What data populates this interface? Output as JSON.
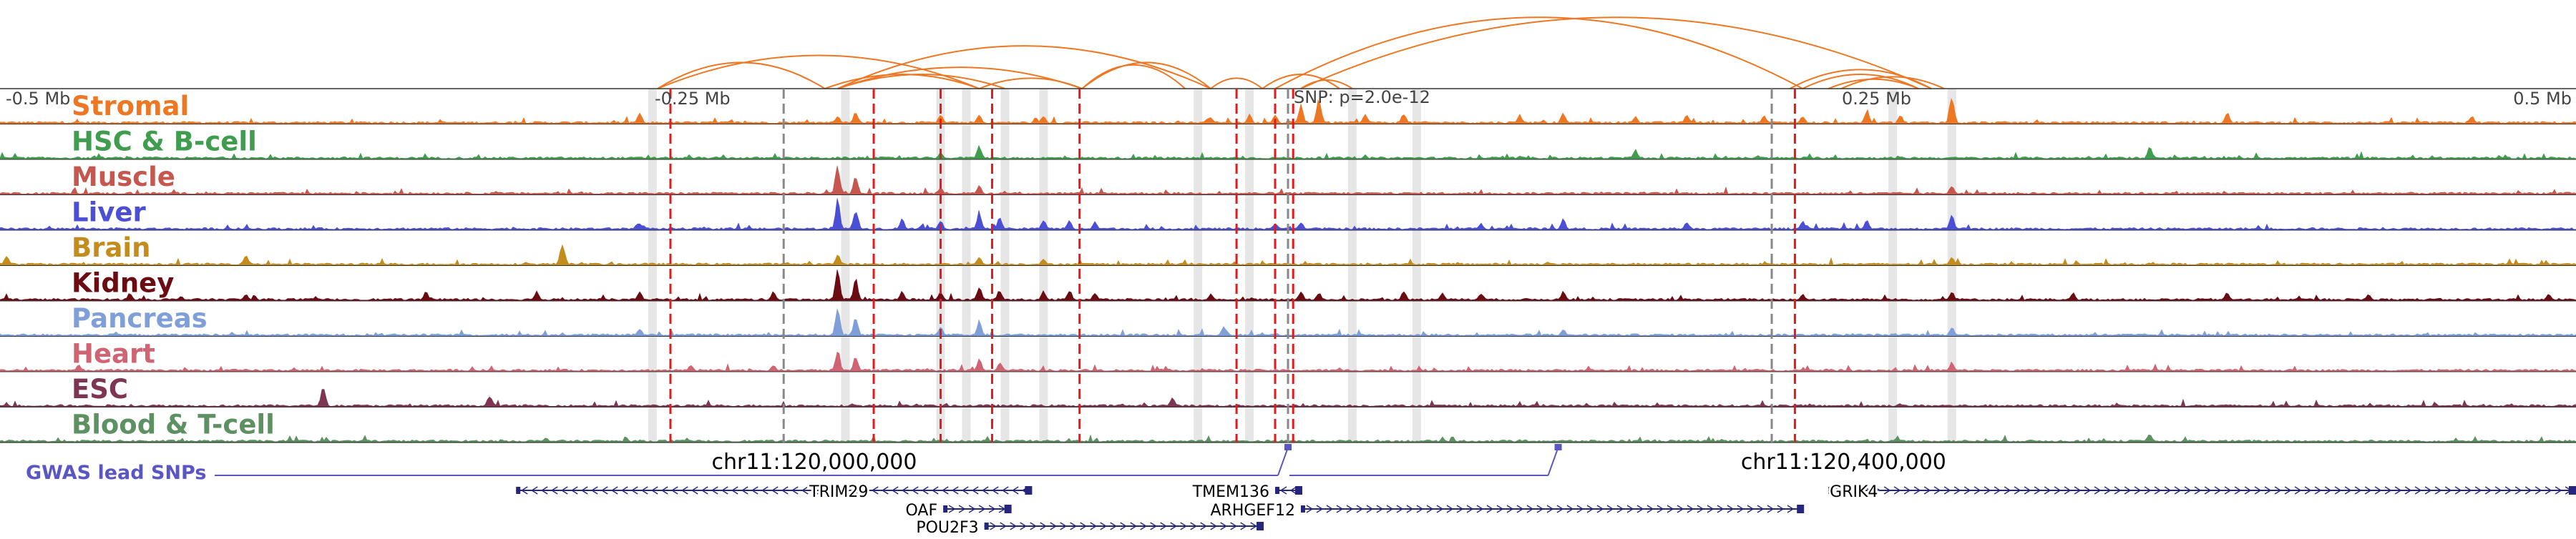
{
  "axis": {
    "labels": [
      {
        "text": "-0.5 Mb",
        "pos": -0.5
      },
      {
        "text": "-0.25 Mb",
        "pos": -0.25
      },
      {
        "text": "0.25 Mb",
        "pos": 0.25
      },
      {
        "text": "0.5 Mb",
        "pos": 0.5
      }
    ],
    "snp_label": "SNP: p=2.0e-12",
    "snp_pos": 0.0,
    "coordinate_labels": [
      {
        "text": "chr11:120,000,000",
        "mb": -0.224
      },
      {
        "text": "chr11:120,400,000",
        "mb": 0.176
      }
    ]
  },
  "tracks": [
    {
      "name": "Stromal",
      "color": "#ee7723"
    },
    {
      "name": "HSC & B-cell",
      "color": "#3f9d4d"
    },
    {
      "name": "Muscle",
      "color": "#c6574e"
    },
    {
      "name": "Liver",
      "color": "#4a4fd6"
    },
    {
      "name": "Brain",
      "color": "#c48c1c"
    },
    {
      "name": "Kidney",
      "color": "#6b0b12"
    },
    {
      "name": "Pancreas",
      "color": "#7f9fd8"
    },
    {
      "name": "Heart",
      "color": "#cf6473"
    },
    {
      "name": "ESC",
      "color": "#7d3553"
    },
    {
      "name": "Blood & T-cell",
      "color": "#5e9161"
    }
  ],
  "peaks": [
    {
      "mb": -0.498,
      "tracks": {
        "Brain": 0.35
      }
    },
    {
      "mb": -0.47,
      "tracks": {
        "Heart": 0.2
      }
    },
    {
      "mb": -0.45,
      "tracks": {
        "Kidney": 0.25
      }
    },
    {
      "mb": -0.405,
      "tracks": {
        "Brain": 0.35,
        "Kidney": 0.2
      }
    },
    {
      "mb": -0.375,
      "tracks": {
        "ESC": 0.7
      }
    },
    {
      "mb": -0.335,
      "tracks": {
        "Kidney": 0.3
      }
    },
    {
      "mb": -0.31,
      "tracks": {
        "ESC": 0.35
      }
    },
    {
      "mb": -0.292,
      "tracks": {
        "Kidney": 0.3
      }
    },
    {
      "mb": -0.282,
      "tracks": {
        "Brain": 0.75
      }
    },
    {
      "mb": -0.252,
      "tracks": {
        "Stromal": 0.35,
        "Kidney": 0.3,
        "Pancreas": 0.25,
        "Liver": 0.2
      }
    },
    {
      "mb": -0.232,
      "tracks": {
        "Heart": 0.2
      }
    },
    {
      "mb": -0.2,
      "tracks": {
        "Kidney": 0.3,
        "Heart": 0.2
      }
    },
    {
      "mb": -0.175,
      "tracks": {
        "Stromal": 0.25,
        "Muscle": 1.0,
        "Liver": 1.0,
        "Brain": 0.35,
        "Kidney": 1.0,
        "Pancreas": 1.0,
        "Heart": 0.7
      }
    },
    {
      "mb": -0.168,
      "tracks": {
        "Stromal": 0.4,
        "Muscle": 0.6,
        "Liver": 0.7,
        "Kidney": 0.7,
        "Pancreas": 0.6,
        "Heart": 0.5
      }
    },
    {
      "mb": -0.15,
      "tracks": {
        "Liver": 0.35,
        "Kidney": 0.3
      }
    },
    {
      "mb": -0.135,
      "tracks": {
        "Stromal": 0.3,
        "HSC & B-cell": 0.2,
        "Muscle": 0.2,
        "Liver": 0.3,
        "Kidney": 0.3,
        "Pancreas": 0.3
      }
    },
    {
      "mb": -0.12,
      "tracks": {
        "Stromal": 0.3,
        "HSC & B-cell": 0.45,
        "Muscle": 0.3,
        "Liver": 0.6,
        "Brain": 0.25,
        "Kidney": 0.5,
        "Pancreas": 0.5,
        "Heart": 0.4
      }
    },
    {
      "mb": -0.112,
      "tracks": {
        "Liver": 0.4,
        "Kidney": 0.35,
        "Heart": 0.3
      }
    },
    {
      "mb": -0.095,
      "tracks": {
        "Stromal": 0.25,
        "Liver": 0.35,
        "Kidney": 0.3,
        "Brain": 0.2
      }
    },
    {
      "mb": -0.085,
      "tracks": {
        "Liver": 0.3,
        "Kidney": 0.35
      }
    },
    {
      "mb": -0.075,
      "tracks": {
        "Liver": 0.25,
        "Kidney": 0.25
      }
    },
    {
      "mb": -0.045,
      "tracks": {
        "ESC": 0.3
      }
    },
    {
      "mb": -0.03,
      "tracks": {
        "Stromal": 0.2,
        "Kidney": 0.2
      }
    },
    {
      "mb": -0.025,
      "tracks": {
        "Pancreas": 0.3
      }
    },
    {
      "mb": -0.015,
      "tracks": {
        "Stromal": 0.3
      }
    },
    {
      "mb": -0.005,
      "tracks": {
        "Stromal": 0.3,
        "Liver": 0.2
      }
    },
    {
      "mb": 0.005,
      "tracks": {
        "Stromal": 0.6,
        "Liver": 0.25,
        "Kidney": 0.3
      }
    },
    {
      "mb": 0.012,
      "tracks": {
        "Stromal": 0.9,
        "Kidney": 0.25
      }
    },
    {
      "mb": 0.03,
      "tracks": {
        "Stromal": 0.3
      }
    },
    {
      "mb": 0.045,
      "tracks": {
        "Stromal": 0.35,
        "Kidney": 0.3
      }
    },
    {
      "mb": 0.06,
      "tracks": {
        "Kidney": 0.25
      }
    },
    {
      "mb": 0.075,
      "tracks": {
        "Kidney": 0.25,
        "Liver": 0.2
      }
    },
    {
      "mb": 0.09,
      "tracks": {
        "Stromal": 0.3
      }
    },
    {
      "mb": 0.107,
      "tracks": {
        "Stromal": 0.35,
        "Liver": 0.35,
        "Kidney": 0.3,
        "Pancreas": 0.2
      }
    },
    {
      "mb": 0.135,
      "tracks": {
        "Stromal": 0.25,
        "HSC & B-cell": 0.3
      }
    },
    {
      "mb": 0.155,
      "tracks": {
        "Stromal": 0.3,
        "Liver": 0.25
      }
    },
    {
      "mb": 0.185,
      "tracks": {
        "Stromal": 0.25
      }
    },
    {
      "mb": 0.2,
      "tracks": {
        "Stromal": 0.25,
        "Liver": 0.3,
        "Kidney": 0.2
      }
    },
    {
      "mb": 0.225,
      "tracks": {
        "Stromal": 0.45,
        "Liver": 0.3
      }
    },
    {
      "mb": 0.238,
      "tracks": {
        "Stromal": 0.3
      }
    },
    {
      "mb": 0.258,
      "tracks": {
        "Stromal": 1.0,
        "Liver": 0.5,
        "Muscle": 0.3,
        "Brain": 0.3,
        "Kidney": 0.3,
        "Pancreas": 0.3,
        "Heart": 0.3
      }
    },
    {
      "mb": 0.305,
      "tracks": {
        "Kidney": 0.25
      }
    },
    {
      "mb": 0.335,
      "tracks": {
        "HSC & B-cell": 0.4,
        "Blood & T-cell": 0.25
      }
    },
    {
      "mb": 0.365,
      "tracks": {
        "Stromal": 0.35,
        "Kidney": 0.25
      }
    },
    {
      "mb": 0.42,
      "tracks": {
        "Kidney": 0.2
      }
    },
    {
      "mb": 0.46,
      "tracks": {
        "Stromal": 0.25
      }
    },
    {
      "mb": 0.49,
      "tracks": {
        "Kidney": 0.2
      }
    }
  ],
  "markers": {
    "highlight_bands": [
      -0.247,
      -0.172,
      -0.135,
      -0.125,
      -0.11,
      -0.095,
      -0.035,
      -0.015,
      0.025,
      0.05,
      0.235,
      0.258
    ],
    "red_dashed": [
      -0.24,
      -0.161,
      -0.135,
      -0.115,
      -0.081,
      -0.02,
      -0.005,
      0.002,
      0.197
    ],
    "gray_dashed": [
      -0.196,
      0.0,
      0.188
    ]
  },
  "loops": [
    {
      "a": -0.245,
      "b": -0.18,
      "h": 55
    },
    {
      "a": -0.245,
      "b": -0.12,
      "h": 70
    },
    {
      "a": -0.18,
      "b": -0.12,
      "h": 30
    },
    {
      "a": -0.175,
      "b": -0.11,
      "h": 30
    },
    {
      "a": -0.175,
      "b": -0.08,
      "h": 45
    },
    {
      "a": -0.12,
      "b": -0.08,
      "h": 22
    },
    {
      "a": -0.175,
      "b": -0.03,
      "h": 90
    },
    {
      "a": -0.08,
      "b": -0.03,
      "h": 55
    },
    {
      "a": -0.08,
      "b": -0.04,
      "h": 50
    },
    {
      "a": -0.03,
      "b": -0.01,
      "h": 22
    },
    {
      "a": -0.01,
      "b": 0.02,
      "h": 30
    },
    {
      "a": 0.005,
      "b": 0.025,
      "h": 18
    },
    {
      "a": -0.005,
      "b": 0.2,
      "h": 150
    },
    {
      "a": 0.005,
      "b": 0.25,
      "h": 150
    },
    {
      "a": 0.195,
      "b": 0.25,
      "h": 40
    },
    {
      "a": 0.2,
      "b": 0.245,
      "h": 30
    },
    {
      "a": 0.21,
      "b": 0.245,
      "h": 20
    },
    {
      "a": 0.215,
      "b": 0.255,
      "h": 25
    }
  ],
  "gwas": {
    "label": "GWAS lead SNPs",
    "snps": [
      {
        "mb": 0.0,
        "level": 0.9
      },
      {
        "mb": 0.105,
        "level": 0.9
      }
    ]
  },
  "genes": [
    {
      "name": "TRIM29",
      "start": -0.3,
      "end": -0.1,
      "strand": "-",
      "row": 0
    },
    {
      "name": "OAF",
      "start": -0.134,
      "end": -0.108,
      "strand": "+",
      "row": 1
    },
    {
      "name": "POU2F3",
      "start": -0.118,
      "end": -0.01,
      "strand": "+",
      "row": 2
    },
    {
      "name": "TMEM136",
      "start": -0.005,
      "end": 0.005,
      "strand": "-",
      "row": 0
    },
    {
      "name": "ARHGEF12",
      "start": 0.005,
      "end": 0.2,
      "strand": "+",
      "row": 1
    },
    {
      "name": "GRIK4",
      "start": 0.21,
      "end": 0.5,
      "strand": "+",
      "row": 0
    }
  ]
}
